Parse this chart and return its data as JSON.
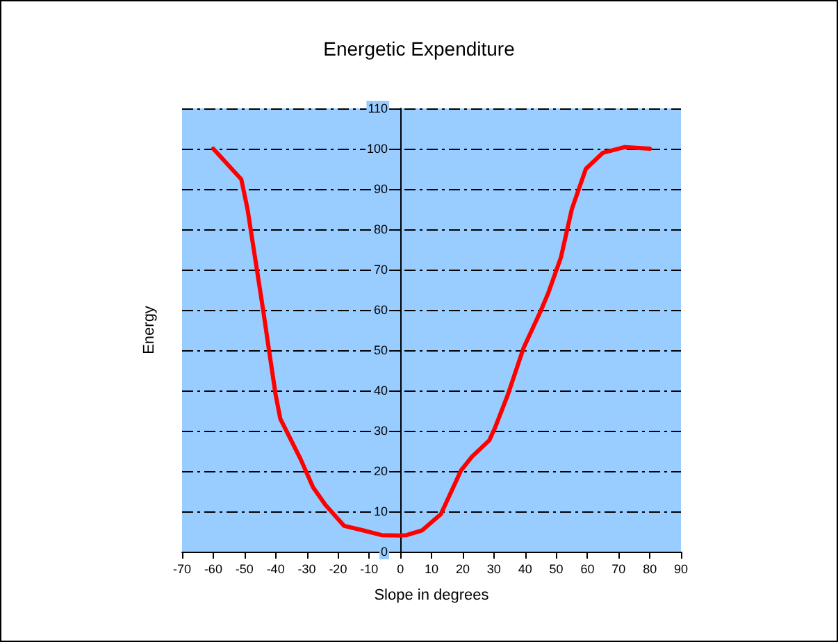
{
  "chart_data": {
    "type": "line",
    "title": "Energetic Expenditure",
    "xlabel": "Slope in degrees",
    "ylabel": "Energy",
    "series": [
      {
        "color": "#ff0000",
        "x": [
          -60,
          -51,
          -49,
          -46,
          -44,
          -42,
          -40,
          -38.5,
          -35,
          -32,
          -28,
          -24,
          -18,
          -12,
          -6,
          0,
          2,
          7,
          13,
          19.5,
          23,
          28.5,
          30.5,
          34.5,
          39.5,
          45,
          47.5,
          51.5,
          55,
          59.5,
          65,
          72,
          80
        ],
        "values": [
          100,
          92.4,
          85,
          70,
          60,
          49.4,
          39,
          33,
          27.6,
          23,
          16,
          11.6,
          6.4,
          5.3,
          4.1,
          4,
          4.1,
          5.3,
          9.3,
          20.2,
          23.6,
          27.6,
          31,
          39,
          50.5,
          59.7,
          64.3,
          73,
          85,
          95,
          99,
          100.4,
          100
        ]
      }
    ],
    "xlim": [
      -70,
      90
    ],
    "xticks": [
      -70,
      -60,
      -50,
      -40,
      -30,
      -20,
      -10,
      0,
      10,
      20,
      30,
      40,
      50,
      60,
      70,
      80,
      90
    ],
    "ylim": [
      0,
      110
    ],
    "yticks": [
      0,
      10,
      20,
      30,
      40,
      50,
      60,
      70,
      80,
      90,
      100,
      110
    ],
    "grid": "y",
    "marker": "none",
    "line_style": "solid"
  }
}
